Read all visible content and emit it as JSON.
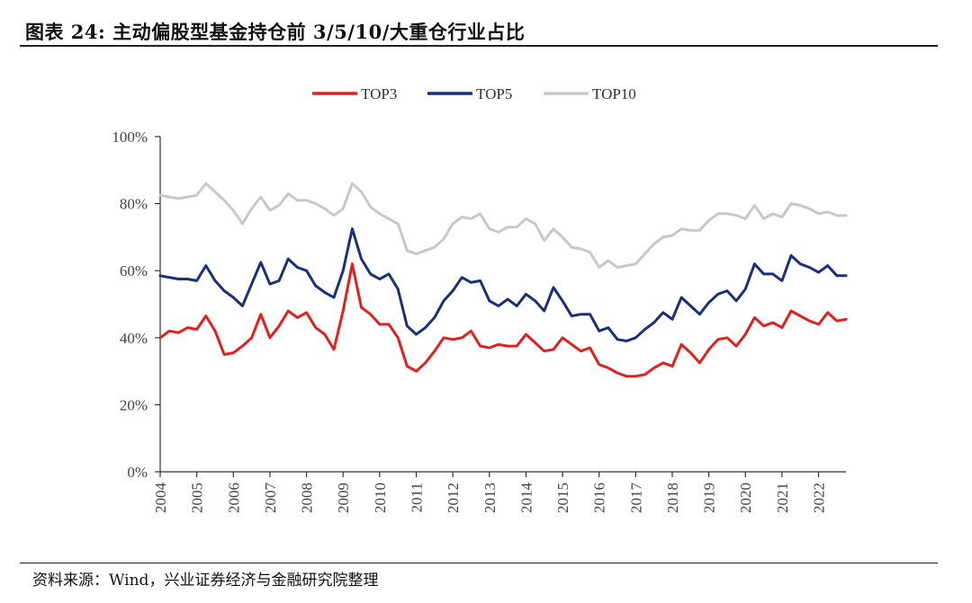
{
  "header": {
    "title": "图表 24:  主动偏股型基金持仓前 3/5/10/大重仓行业占比"
  },
  "footer": {
    "source": "资料来源：Wind，兴业证券经济与金融研究院整理"
  },
  "colors": {
    "TOP3": "#e02020",
    "TOP5": "#1a2f7a",
    "TOP10": "#c8c8c8"
  },
  "chart_data": {
    "type": "line",
    "title": "",
    "xlabel": "",
    "ylabel": "",
    "ylim": [
      0,
      100
    ],
    "y_ticks": [
      "0%",
      "20%",
      "40%",
      "60%",
      "80%",
      "100%"
    ],
    "x_ticks": [
      "2004",
      "2005",
      "2006",
      "2007",
      "2008",
      "2009",
      "2010",
      "2011",
      "2012",
      "2013",
      "2014",
      "2015",
      "2016",
      "2017",
      "2018",
      "2019",
      "2020",
      "2021",
      "2022"
    ],
    "x_range": [
      2004.0,
      2022.75
    ],
    "grid": false,
    "legend": "top",
    "x": [
      2004.0,
      2004.25,
      2004.5,
      2004.75,
      2005.0,
      2005.25,
      2005.5,
      2005.75,
      2006.0,
      2006.25,
      2006.5,
      2006.75,
      2007.0,
      2007.25,
      2007.5,
      2007.75,
      2008.0,
      2008.25,
      2008.5,
      2008.75,
      2009.0,
      2009.25,
      2009.5,
      2009.75,
      2010.0,
      2010.25,
      2010.5,
      2010.75,
      2011.0,
      2011.25,
      2011.5,
      2011.75,
      2012.0,
      2012.25,
      2012.5,
      2012.75,
      2013.0,
      2013.25,
      2013.5,
      2013.75,
      2014.0,
      2014.25,
      2014.5,
      2014.75,
      2015.0,
      2015.25,
      2015.5,
      2015.75,
      2016.0,
      2016.25,
      2016.5,
      2016.75,
      2017.0,
      2017.25,
      2017.5,
      2017.75,
      2018.0,
      2018.25,
      2018.5,
      2018.75,
      2019.0,
      2019.25,
      2019.5,
      2019.75,
      2020.0,
      2020.25,
      2020.5,
      2020.75,
      2021.0,
      2021.25,
      2021.5,
      2021.75,
      2022.0,
      2022.25,
      2022.5,
      2022.75
    ],
    "series": [
      {
        "name": "TOP3",
        "values": [
          40,
          42,
          41.5,
          43,
          42.5,
          46.5,
          42,
          35,
          35.5,
          37.5,
          40,
          47,
          40,
          43.5,
          48,
          46,
          47.5,
          43,
          41,
          36.5,
          48,
          62,
          49,
          47,
          44,
          44,
          40,
          31.5,
          30,
          32.5,
          36,
          40,
          39.5,
          40,
          42,
          37.5,
          37,
          38,
          37.5,
          37.5,
          41,
          38.5,
          36,
          36.5,
          40,
          38,
          36,
          37,
          32,
          31,
          29.5,
          28.5,
          28.5,
          29,
          31,
          32.5,
          31.5,
          38,
          35.5,
          32.5,
          36.5,
          39.5,
          40,
          37.5,
          41,
          46,
          43.5,
          44.5,
          43,
          48,
          46.5,
          45,
          44,
          47.5,
          45,
          45.5
        ]
      },
      {
        "name": "TOP5",
        "values": [
          58.5,
          58,
          57.5,
          57.5,
          57,
          61.5,
          57,
          54,
          52,
          49.5,
          56,
          62.5,
          56,
          57,
          63.5,
          61,
          60,
          55.5,
          53.5,
          52,
          60,
          72.5,
          63.5,
          59,
          57.5,
          59,
          54.5,
          43.5,
          41,
          43,
          46,
          51,
          54,
          58,
          56.5,
          57,
          51,
          49.5,
          51.5,
          49.5,
          53,
          51,
          48,
          55,
          51,
          46.5,
          47,
          47,
          42,
          43,
          39.5,
          39,
          40,
          42.5,
          44.5,
          47.5,
          45.5,
          52,
          49.5,
          47,
          50.5,
          53,
          54,
          51,
          54.5,
          62,
          59,
          59,
          57,
          64.5,
          62,
          61,
          59.5,
          61.5,
          58.5,
          58.5
        ]
      },
      {
        "name": "TOP10",
        "values": [
          82.5,
          82,
          81.5,
          82,
          82.5,
          86,
          83.5,
          81,
          78,
          74,
          78.5,
          82,
          78,
          79.5,
          83,
          81,
          81,
          80,
          78.5,
          76.5,
          78.5,
          86,
          83.5,
          79,
          77,
          75.5,
          74,
          66,
          65,
          66,
          67,
          69.5,
          74,
          76,
          75.5,
          77,
          72.5,
          71.5,
          73,
          73,
          75.5,
          74,
          69,
          72.5,
          70,
          67,
          66.5,
          65.5,
          61,
          63,
          61,
          61.5,
          62,
          65,
          68,
          70,
          70.5,
          72.5,
          72,
          72,
          75,
          77,
          77,
          76.5,
          75.5,
          79.5,
          75.5,
          77,
          76,
          80,
          79.5,
          78.5,
          77,
          77.5,
          76.5,
          76.5
        ]
      }
    ]
  }
}
